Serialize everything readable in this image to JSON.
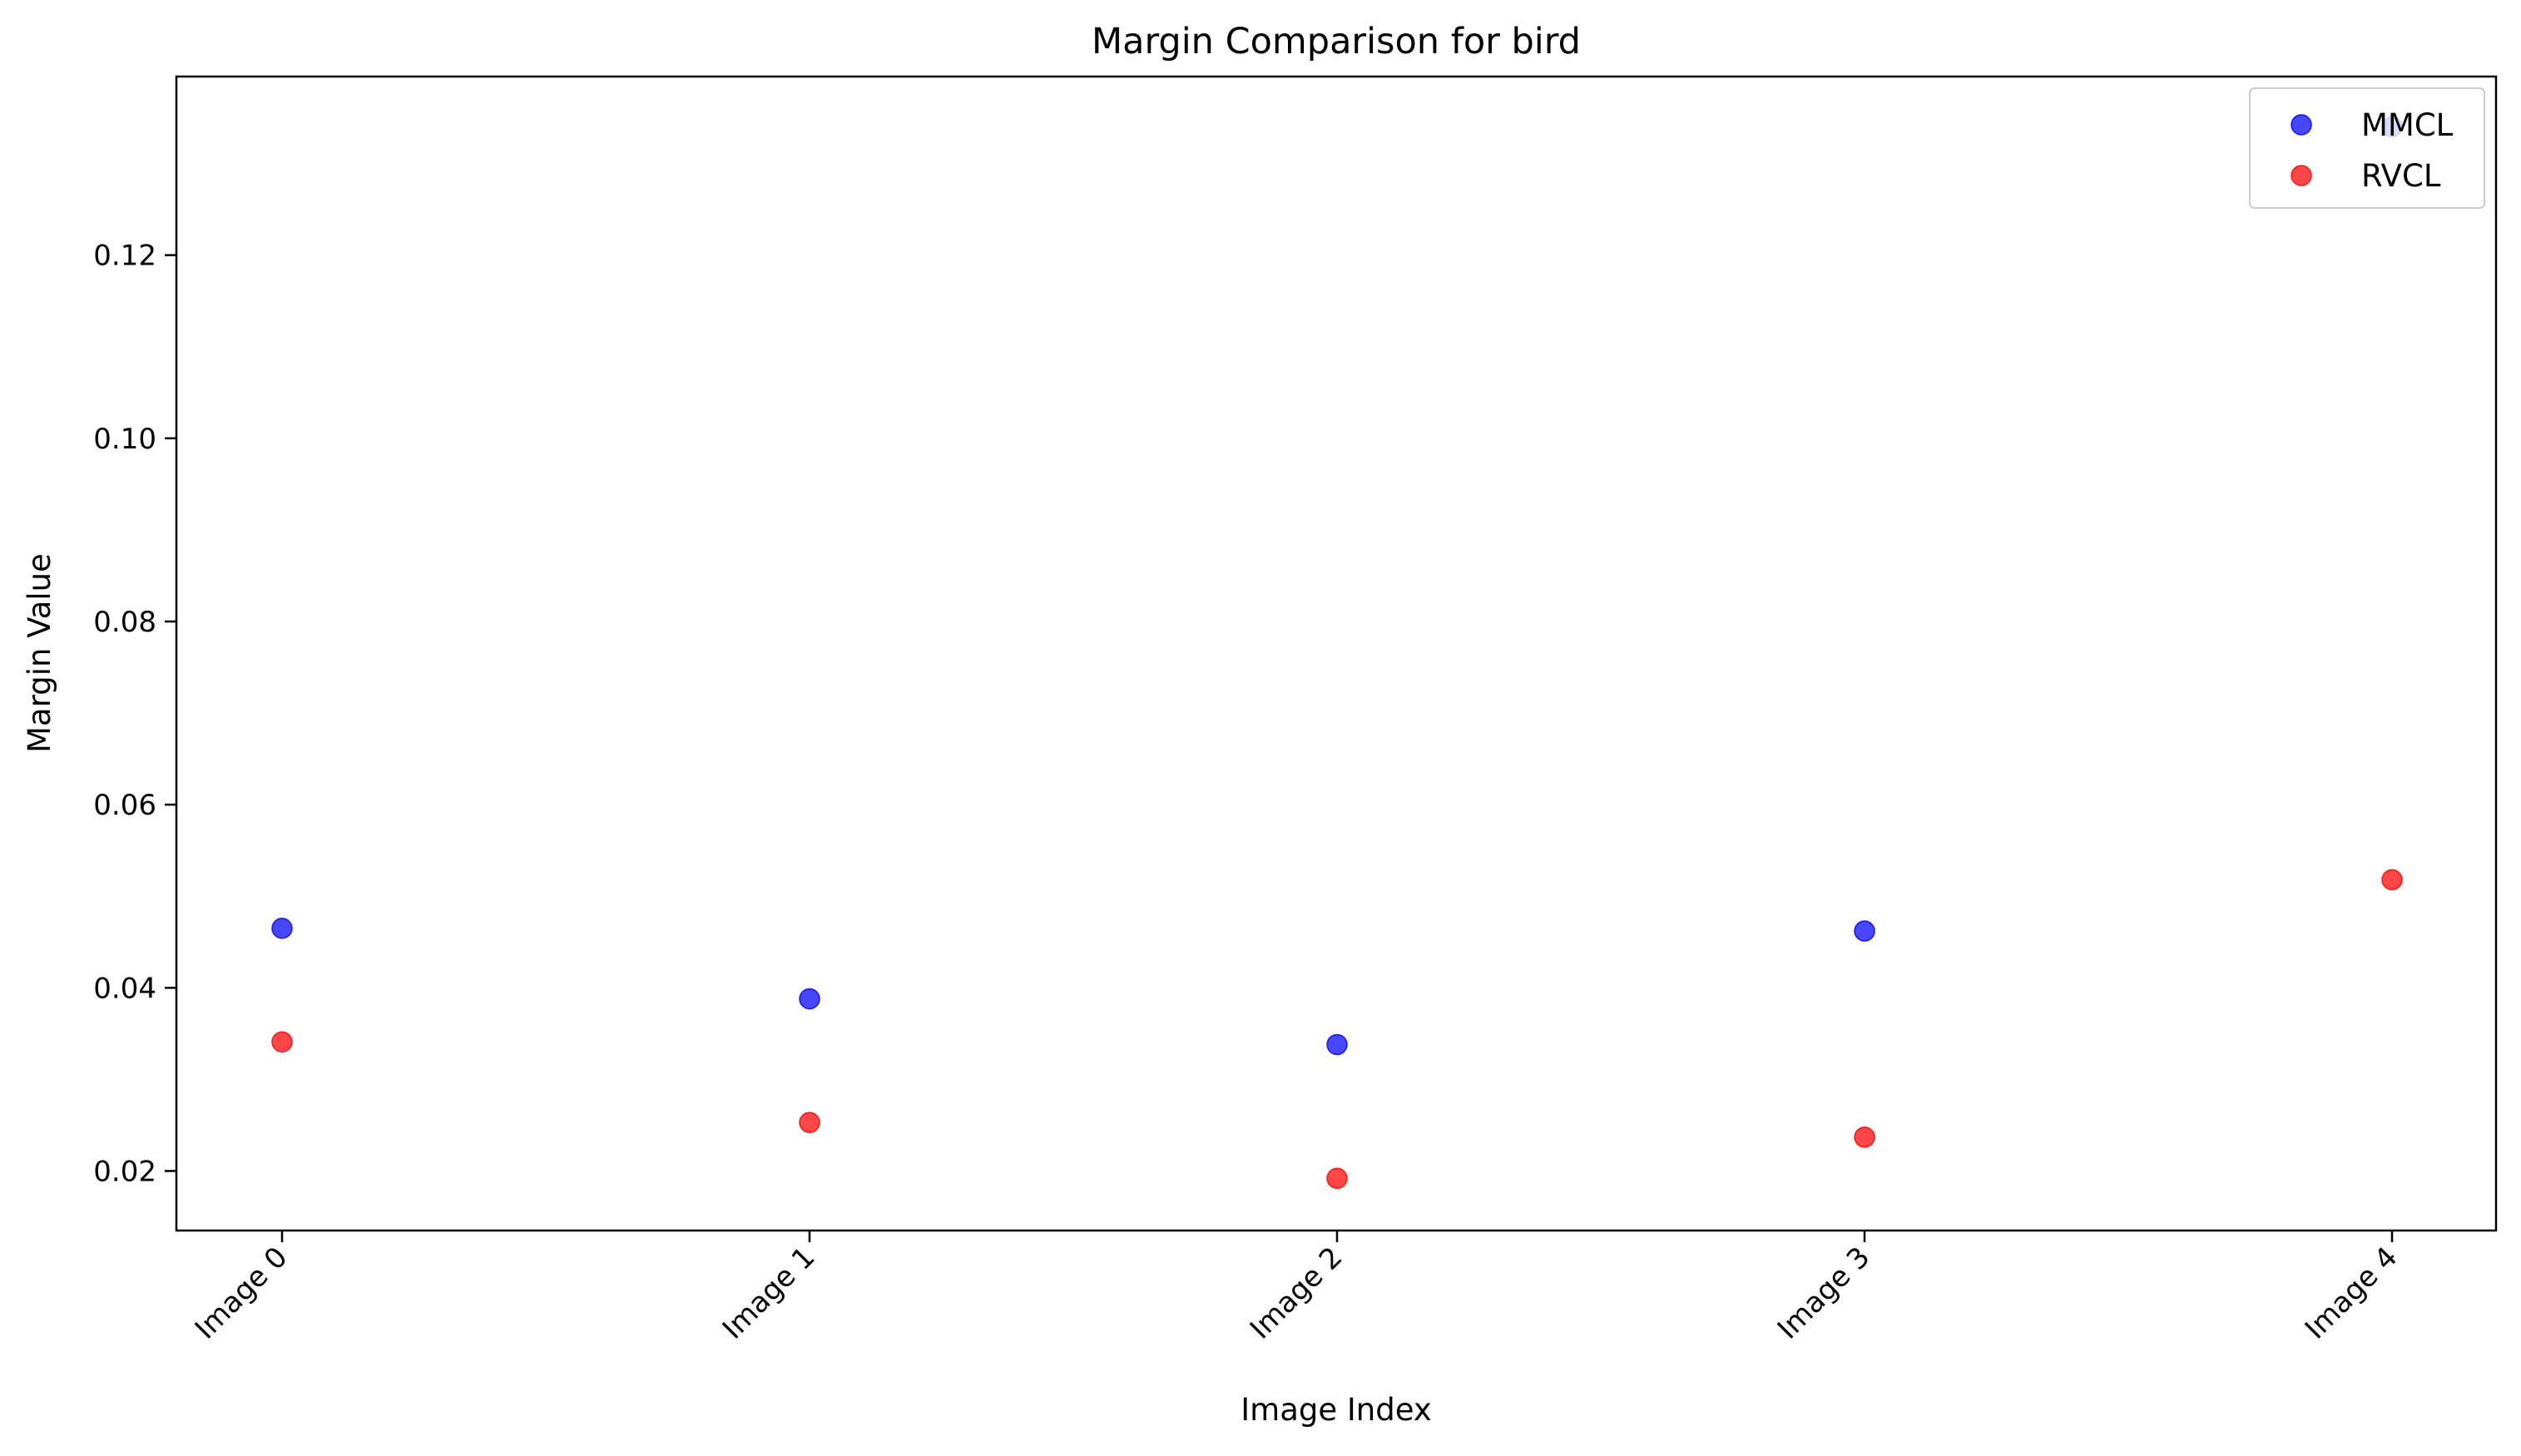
{
  "chart_data": {
    "type": "scatter",
    "title": "Margin Comparison for bird",
    "xlabel": "Image Index",
    "ylabel": "Margin Value",
    "categories": [
      "Image 0",
      "Image 1",
      "Image 2",
      "Image 3",
      "Image 4"
    ],
    "yticks": [
      "0.02",
      "0.04",
      "0.06",
      "0.08",
      "0.10",
      "0.12"
    ],
    "ylim": [
      0.0135,
      0.1395
    ],
    "grid": false,
    "legend_position": "top-right",
    "series": [
      {
        "name": "MMCL",
        "color": "#0000ff",
        "values": [
          0.0465,
          0.0388,
          0.0338,
          0.0462,
          0.134
        ]
      },
      {
        "name": "RVCL",
        "color": "#ff0000",
        "values": [
          0.0341,
          0.0253,
          0.0192,
          0.0237,
          0.0518
        ]
      }
    ]
  }
}
